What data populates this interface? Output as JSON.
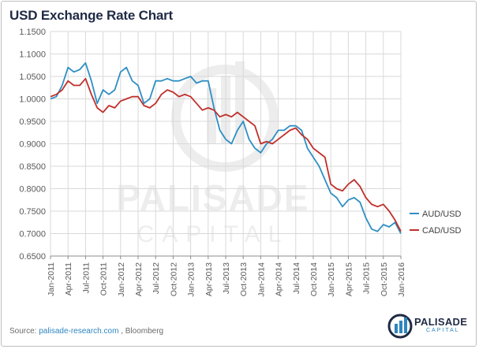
{
  "title": "USD Exchange Rate Chart",
  "footer": {
    "source_label": "Source:",
    "source_link": "palisade-research.com",
    "source_rest": ", Bloomberg"
  },
  "logo": {
    "name": "PALISADE",
    "sub": "CAPITAL"
  },
  "watermark": {
    "line1": "PALISADE",
    "line2": "CAPITAL"
  },
  "colors": {
    "aud": "#2e8fc4",
    "cad": "#c0302b",
    "grid": "#d9d9d9",
    "axis_text": "#595959"
  },
  "chart_data": {
    "type": "line",
    "title": "USD Exchange Rate Chart",
    "xlabel": "",
    "ylabel": "",
    "ylim": [
      0.65,
      1.15
    ],
    "yticks": [
      "1.1500",
      "1.1000",
      "1.0500",
      "1.0000",
      "0.9500",
      "0.9000",
      "0.8500",
      "0.8000",
      "0.7500",
      "0.7000",
      "0.6500"
    ],
    "xticks": [
      "Jan-2011",
      "Apr-2011",
      "Jul-2011",
      "Oct-2011",
      "Jan-2012",
      "Apr-2012",
      "Jul-2012",
      "Oct-2012",
      "Jan-2013",
      "Apr-2013",
      "Jul-2013",
      "Oct-2013",
      "Jan-2014",
      "Apr-2014",
      "Jul-2014",
      "Oct-2014",
      "Jan-2015",
      "Apr-2015",
      "Jul-2015",
      "Oct-2015",
      "Jan-2016"
    ],
    "grid": true,
    "legend_position": "right",
    "x": [
      "2011-01",
      "2011-02",
      "2011-03",
      "2011-04",
      "2011-05",
      "2011-06",
      "2011-07",
      "2011-08",
      "2011-09",
      "2011-10",
      "2011-11",
      "2011-12",
      "2012-01",
      "2012-02",
      "2012-03",
      "2012-04",
      "2012-05",
      "2012-06",
      "2012-07",
      "2012-08",
      "2012-09",
      "2012-10",
      "2012-11",
      "2012-12",
      "2013-01",
      "2013-02",
      "2013-03",
      "2013-04",
      "2013-05",
      "2013-06",
      "2013-07",
      "2013-08",
      "2013-09",
      "2013-10",
      "2013-11",
      "2013-12",
      "2014-01",
      "2014-02",
      "2014-03",
      "2014-04",
      "2014-05",
      "2014-06",
      "2014-07",
      "2014-08",
      "2014-09",
      "2014-10",
      "2014-11",
      "2014-12",
      "2015-01",
      "2015-02",
      "2015-03",
      "2015-04",
      "2015-05",
      "2015-06",
      "2015-07",
      "2015-08",
      "2015-09",
      "2015-10",
      "2015-11",
      "2015-12",
      "2016-01"
    ],
    "series": [
      {
        "name": "AUD/USD",
        "values": [
          1.0,
          1.005,
          1.03,
          1.07,
          1.06,
          1.065,
          1.08,
          1.04,
          0.99,
          1.02,
          1.01,
          1.02,
          1.06,
          1.07,
          1.04,
          1.03,
          0.99,
          1.0,
          1.04,
          1.04,
          1.045,
          1.04,
          1.04,
          1.045,
          1.05,
          1.035,
          1.04,
          1.04,
          0.98,
          0.93,
          0.91,
          0.9,
          0.93,
          0.95,
          0.91,
          0.89,
          0.88,
          0.9,
          0.91,
          0.93,
          0.93,
          0.94,
          0.94,
          0.93,
          0.89,
          0.87,
          0.85,
          0.82,
          0.79,
          0.78,
          0.76,
          0.775,
          0.78,
          0.77,
          0.735,
          0.71,
          0.705,
          0.72,
          0.715,
          0.725,
          0.7
        ]
      },
      {
        "name": "CAD/USD",
        "values": [
          1.005,
          1.01,
          1.02,
          1.04,
          1.03,
          1.03,
          1.045,
          1.01,
          0.98,
          0.97,
          0.985,
          0.98,
          0.995,
          1.0,
          1.005,
          1.005,
          0.985,
          0.98,
          0.99,
          1.01,
          1.02,
          1.015,
          1.005,
          1.01,
          1.005,
          0.99,
          0.975,
          0.98,
          0.975,
          0.96,
          0.965,
          0.96,
          0.97,
          0.96,
          0.95,
          0.94,
          0.9,
          0.905,
          0.9,
          0.91,
          0.92,
          0.93,
          0.935,
          0.92,
          0.91,
          0.89,
          0.88,
          0.87,
          0.81,
          0.8,
          0.795,
          0.81,
          0.82,
          0.805,
          0.78,
          0.765,
          0.76,
          0.765,
          0.75,
          0.73,
          0.705
        ]
      }
    ]
  }
}
